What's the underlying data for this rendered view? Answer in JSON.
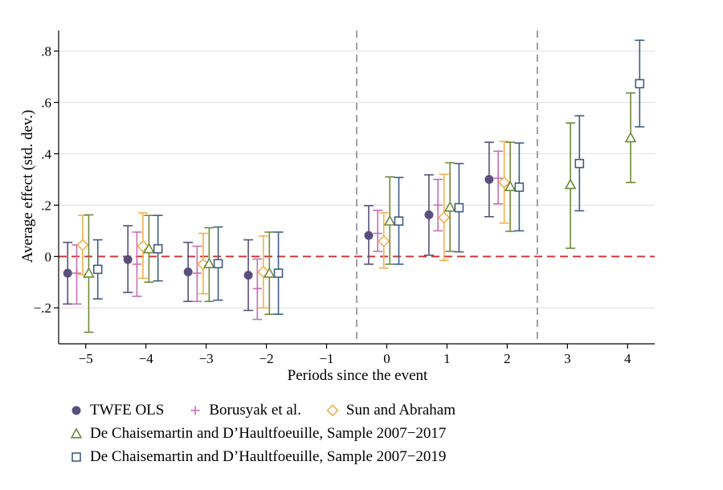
{
  "chart_data": {
    "type": "scatter",
    "subtype": "event-study coefficient plot with confidence intervals",
    "xlabel": "Periods since the event",
    "ylabel": "Average effect (std. dev.)",
    "xlim": [
      -5.45,
      4.45
    ],
    "ylim": [
      -0.34,
      0.88
    ],
    "x_ticks": [
      -5,
      -4,
      -3,
      -2,
      -1,
      0,
      1,
      2,
      3,
      4
    ],
    "x_tick_labels": [
      "−5",
      "−4",
      "−3",
      "−2",
      "−1",
      "0",
      "1",
      "2",
      "3",
      "4"
    ],
    "y_ticks": [
      -0.2,
      0,
      0.2,
      0.4,
      0.6,
      0.8
    ],
    "y_tick_labels": [
      "−.2",
      "0",
      ".2",
      ".4",
      ".6",
      ".8"
    ],
    "grid": true,
    "reference_line_y": 0,
    "reference_lines_x": [
      -0.5,
      2.5
    ],
    "series": [
      {
        "name": "TWFE OLS",
        "marker": "filled-circle",
        "color": "#5a4f7c",
        "offset": -0.3,
        "points": [
          {
            "x": -5,
            "y": -0.065,
            "lo": -0.185,
            "hi": 0.055
          },
          {
            "x": -4,
            "y": -0.012,
            "lo": -0.14,
            "hi": 0.12
          },
          {
            "x": -3,
            "y": -0.06,
            "lo": -0.175,
            "hi": 0.055
          },
          {
            "x": -2,
            "y": -0.073,
            "lo": -0.21,
            "hi": 0.065
          },
          {
            "x": 0,
            "y": 0.082,
            "lo": -0.03,
            "hi": 0.198
          },
          {
            "x": 1,
            "y": 0.162,
            "lo": 0.005,
            "hi": 0.318
          },
          {
            "x": 2,
            "y": 0.3,
            "lo": 0.155,
            "hi": 0.445
          }
        ]
      },
      {
        "name": "Borusyak et al.",
        "marker": "plus",
        "color": "#c86fb5",
        "offset": -0.15,
        "points": [
          {
            "x": -5,
            "y": -0.065,
            "lo": -0.185,
            "hi": 0.045
          },
          {
            "x": -4,
            "y": -0.03,
            "lo": -0.155,
            "hi": 0.095
          },
          {
            "x": -3,
            "y": -0.065,
            "lo": -0.175,
            "hi": 0.04
          },
          {
            "x": -2,
            "y": -0.125,
            "lo": -0.245,
            "hi": -0.01
          },
          {
            "x": 0,
            "y": 0.09,
            "lo": 0.02,
            "hi": 0.18
          },
          {
            "x": 1,
            "y": 0.2,
            "lo": 0.1,
            "hi": 0.3
          },
          {
            "x": 2,
            "y": 0.305,
            "lo": 0.205,
            "hi": 0.41
          }
        ]
      },
      {
        "name": "Sun and Abraham",
        "marker": "hollow-diamond",
        "color": "#f2b04c",
        "offset": -0.05,
        "points": [
          {
            "x": -5,
            "y": 0.045,
            "lo": -0.07,
            "hi": 0.16
          },
          {
            "x": -4,
            "y": 0.04,
            "lo": -0.085,
            "hi": 0.17
          },
          {
            "x": -3,
            "y": -0.03,
            "lo": -0.145,
            "hi": 0.09
          },
          {
            "x": -2,
            "y": -0.06,
            "lo": -0.2,
            "hi": 0.08
          },
          {
            "x": 0,
            "y": 0.06,
            "lo": -0.045,
            "hi": 0.17
          },
          {
            "x": 1,
            "y": 0.152,
            "lo": -0.015,
            "hi": 0.32
          },
          {
            "x": 2,
            "y": 0.288,
            "lo": 0.13,
            "hi": 0.448
          }
        ]
      },
      {
        "name": "De Chaisemartin and D’Haultfoeuille, Sample 2007−2017",
        "marker": "hollow-triangle",
        "color": "#6e8a3a",
        "offset": 0.05,
        "points": [
          {
            "x": -5,
            "y": -0.065,
            "lo": -0.295,
            "hi": 0.162
          },
          {
            "x": -4,
            "y": 0.03,
            "lo": -0.1,
            "hi": 0.16
          },
          {
            "x": -3,
            "y": -0.028,
            "lo": -0.175,
            "hi": 0.112
          },
          {
            "x": -2,
            "y": -0.065,
            "lo": -0.225,
            "hi": 0.095
          },
          {
            "x": 0,
            "y": 0.138,
            "lo": -0.03,
            "hi": 0.31
          },
          {
            "x": 1,
            "y": 0.192,
            "lo": 0.02,
            "hi": 0.365
          },
          {
            "x": 2,
            "y": 0.272,
            "lo": 0.098,
            "hi": 0.445
          },
          {
            "x": 3,
            "y": 0.28,
            "lo": 0.032,
            "hi": 0.52
          },
          {
            "x": 4,
            "y": 0.462,
            "lo": 0.288,
            "hi": 0.637
          }
        ]
      },
      {
        "name": "De Chaisemartin and D’Haultfoeuille, Sample 2007−2019",
        "marker": "hollow-square",
        "color": "#3f5d85",
        "offset": 0.2,
        "points": [
          {
            "x": -5,
            "y": -0.05,
            "lo": -0.165,
            "hi": 0.065
          },
          {
            "x": -4,
            "y": 0.03,
            "lo": -0.095,
            "hi": 0.16
          },
          {
            "x": -3,
            "y": -0.028,
            "lo": -0.17,
            "hi": 0.115
          },
          {
            "x": -2,
            "y": -0.065,
            "lo": -0.225,
            "hi": 0.095
          },
          {
            "x": 0,
            "y": 0.138,
            "lo": -0.03,
            "hi": 0.308
          },
          {
            "x": 1,
            "y": 0.19,
            "lo": 0.018,
            "hi": 0.362
          },
          {
            "x": 2,
            "y": 0.27,
            "lo": 0.1,
            "hi": 0.442
          },
          {
            "x": 3,
            "y": 0.362,
            "lo": 0.178,
            "hi": 0.548
          },
          {
            "x": 4,
            "y": 0.673,
            "lo": 0.505,
            "hi": 0.842
          }
        ]
      }
    ],
    "legend": {
      "placement": "bottom",
      "rows": [
        [
          0,
          1,
          2
        ],
        [
          3
        ],
        [
          4
        ]
      ]
    }
  }
}
